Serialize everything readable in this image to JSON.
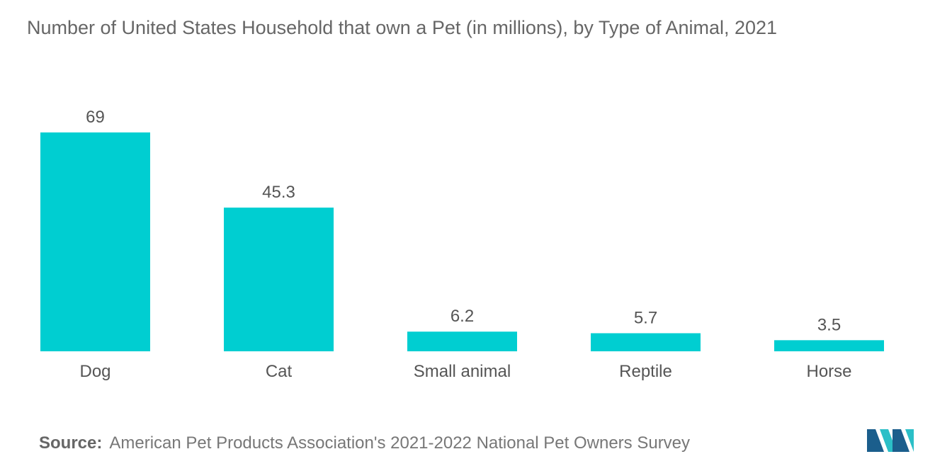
{
  "title": "Number of United States Household that own a Pet (in millions), by Type of Animal, 2021",
  "source": {
    "label": "Source:",
    "text": "American Pet Products Association's 2021-2022 National Pet Owners Survey"
  },
  "colors": {
    "bar": "#00CED1",
    "label": "#555555",
    "logo_dark": "#1b5e8c",
    "logo_light": "#2bbfc7"
  },
  "chart_data": {
    "type": "bar",
    "title": "Number of United States Household that own a Pet (in millions), by Type of Animal, 2021",
    "xlabel": "",
    "ylabel": "",
    "categories": [
      "Dog",
      "Cat",
      "Small animal",
      "Reptile",
      "Horse"
    ],
    "values": [
      69,
      45.3,
      6.2,
      5.7,
      3.5
    ],
    "data_labels": [
      "69",
      "45.3",
      "6.2",
      "5.7",
      "3.5"
    ],
    "ylim": [
      0,
      69
    ],
    "grid": false,
    "legend": "none"
  }
}
